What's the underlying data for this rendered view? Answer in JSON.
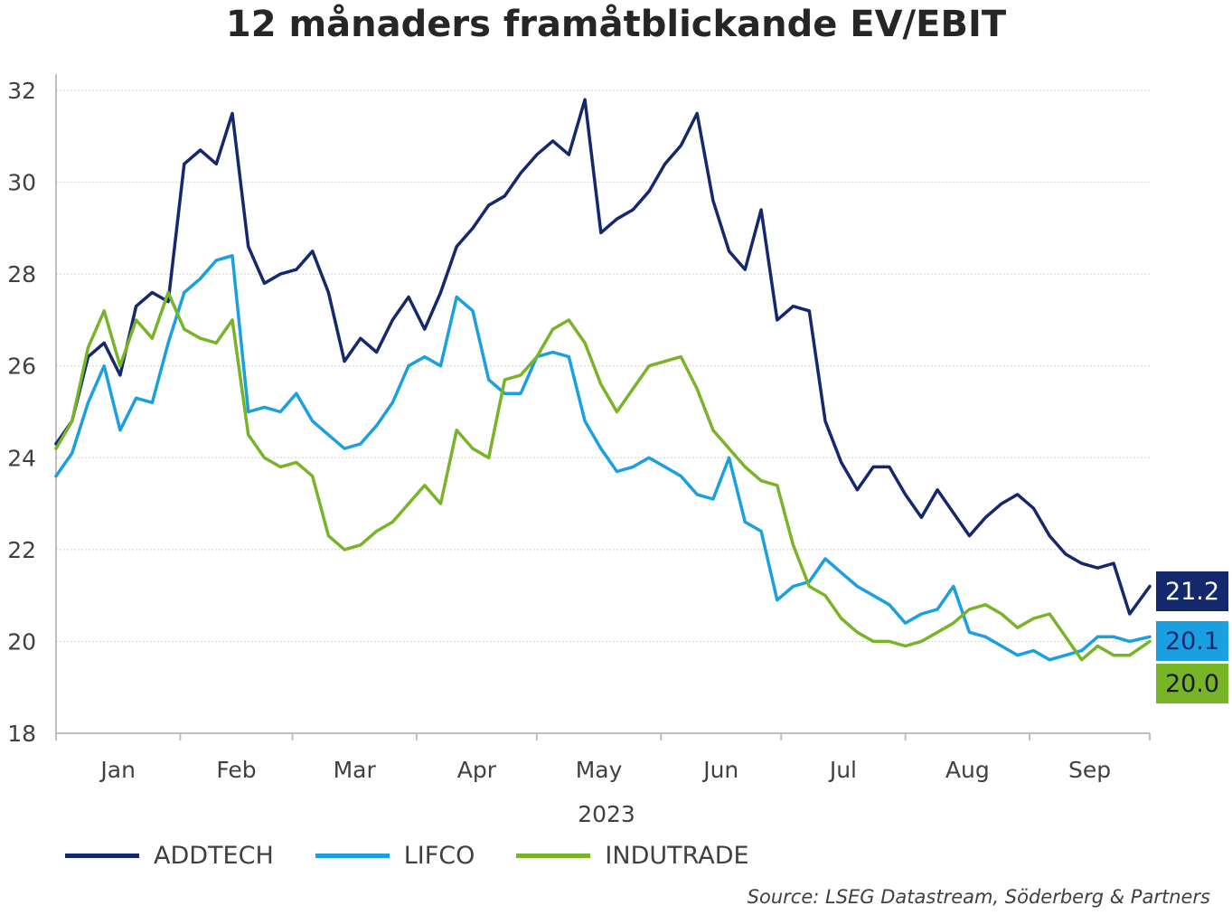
{
  "title": "12 månaders framåtblickande EV/EBIT",
  "source": "Source: LSEG Datastream, Söderberg & Partners",
  "chart_data": {
    "type": "line",
    "title": "12 månaders framåtblickande EV/EBIT",
    "xlabel": "2023",
    "ylabel": "",
    "ylim": [
      18,
      32
    ],
    "yticks": [
      18,
      20,
      22,
      24,
      26,
      28,
      30,
      32
    ],
    "month_labels": [
      "Jan",
      "Feb",
      "Mar",
      "Apr",
      "May",
      "Jun",
      "Jul",
      "Aug",
      "Sep"
    ],
    "x_range": [
      1,
      274
    ],
    "grid": "horizontal",
    "legend_position": "bottom",
    "series": [
      {
        "name": "ADDTECH",
        "color": "#14286e",
        "last_value": "21.2",
        "x": [
          1,
          5,
          9,
          13,
          17,
          21,
          25,
          29,
          33,
          37,
          41,
          45,
          49,
          53,
          57,
          61,
          65,
          69,
          73,
          77,
          81,
          85,
          89,
          93,
          97,
          101,
          105,
          109,
          113,
          117,
          121,
          125,
          129,
          133,
          137,
          141,
          145,
          149,
          153,
          157,
          161,
          165,
          169,
          173,
          177,
          181,
          185,
          189,
          193,
          197,
          201,
          205,
          209,
          213,
          217,
          221,
          225,
          229,
          233,
          237,
          241,
          245,
          249,
          253,
          257,
          261,
          265,
          269,
          274
        ],
        "values": [
          24.3,
          24.8,
          26.2,
          26.5,
          25.8,
          27.3,
          27.6,
          27.4,
          30.4,
          30.7,
          30.4,
          31.5,
          28.6,
          27.8,
          28.0,
          28.1,
          28.5,
          27.6,
          26.1,
          26.6,
          26.3,
          27.0,
          27.5,
          26.8,
          27.6,
          28.6,
          29.0,
          29.5,
          29.7,
          30.2,
          30.6,
          30.9,
          30.6,
          31.8,
          28.9,
          29.2,
          29.4,
          29.8,
          30.4,
          30.8,
          31.5,
          29.6,
          28.5,
          28.1,
          29.4,
          27.0,
          27.3,
          27.2,
          24.8,
          23.9,
          23.3,
          23.8,
          23.8,
          23.2,
          22.7,
          23.3,
          22.8,
          22.3,
          22.7,
          23.0,
          23.2,
          22.9,
          22.3,
          21.9,
          21.7,
          21.6,
          21.7,
          20.6,
          21.2
        ]
      },
      {
        "name": "LIFCO",
        "color": "#1aa0e0",
        "last_value": "20.1",
        "x": [
          1,
          5,
          9,
          13,
          17,
          21,
          25,
          29,
          33,
          37,
          41,
          45,
          49,
          53,
          57,
          61,
          65,
          69,
          73,
          77,
          81,
          85,
          89,
          93,
          97,
          101,
          105,
          109,
          113,
          117,
          121,
          125,
          129,
          133,
          137,
          141,
          145,
          149,
          153,
          157,
          161,
          165,
          169,
          173,
          177,
          181,
          185,
          189,
          193,
          197,
          201,
          205,
          209,
          213,
          217,
          221,
          225,
          229,
          233,
          237,
          241,
          245,
          249,
          253,
          257,
          261,
          265,
          269,
          274
        ],
        "values": [
          23.6,
          24.1,
          25.2,
          26.0,
          24.6,
          25.3,
          25.2,
          26.5,
          27.6,
          27.9,
          28.3,
          28.4,
          25.0,
          25.1,
          25.0,
          25.4,
          24.8,
          24.5,
          24.2,
          24.3,
          24.7,
          25.2,
          26.0,
          26.2,
          26.0,
          27.5,
          27.2,
          25.7,
          25.4,
          25.4,
          26.2,
          26.3,
          26.2,
          24.8,
          24.2,
          23.7,
          23.8,
          24.0,
          23.8,
          23.6,
          23.2,
          23.1,
          24.0,
          22.6,
          22.4,
          20.9,
          21.2,
          21.3,
          21.8,
          21.5,
          21.2,
          21.0,
          20.8,
          20.4,
          20.6,
          20.7,
          21.2,
          20.2,
          20.1,
          19.9,
          19.7,
          19.8,
          19.6,
          19.7,
          19.8,
          20.1,
          20.1,
          20.0,
          20.1
        ]
      },
      {
        "name": "INDUTRADE",
        "color": "#78b428",
        "last_value": "20.0",
        "x": [
          1,
          5,
          9,
          13,
          17,
          21,
          25,
          29,
          33,
          37,
          41,
          45,
          49,
          53,
          57,
          61,
          65,
          69,
          73,
          77,
          81,
          85,
          89,
          93,
          97,
          101,
          105,
          109,
          113,
          117,
          121,
          125,
          129,
          133,
          137,
          141,
          145,
          149,
          153,
          157,
          161,
          165,
          169,
          173,
          177,
          181,
          185,
          189,
          193,
          197,
          201,
          205,
          209,
          213,
          217,
          221,
          225,
          229,
          233,
          237,
          241,
          245,
          249,
          253,
          257,
          261,
          265,
          269,
          274
        ],
        "values": [
          24.2,
          24.8,
          26.4,
          27.2,
          26.0,
          27.0,
          26.6,
          27.6,
          26.8,
          26.6,
          26.5,
          27.0,
          24.5,
          24.0,
          23.8,
          23.9,
          23.6,
          22.3,
          22.0,
          22.1,
          22.4,
          22.6,
          23.0,
          23.4,
          23.0,
          24.6,
          24.2,
          24.0,
          25.7,
          25.8,
          26.2,
          26.8,
          27.0,
          26.5,
          25.6,
          25.0,
          25.5,
          26.0,
          26.1,
          26.2,
          25.5,
          24.6,
          24.2,
          23.8,
          23.5,
          23.4,
          22.1,
          21.2,
          21.0,
          20.5,
          20.2,
          20.0,
          20.0,
          19.9,
          20.0,
          20.2,
          20.4,
          20.7,
          20.8,
          20.6,
          20.3,
          20.5,
          20.6,
          20.1,
          19.6,
          19.9,
          19.7,
          19.7,
          20.0
        ]
      }
    ]
  }
}
